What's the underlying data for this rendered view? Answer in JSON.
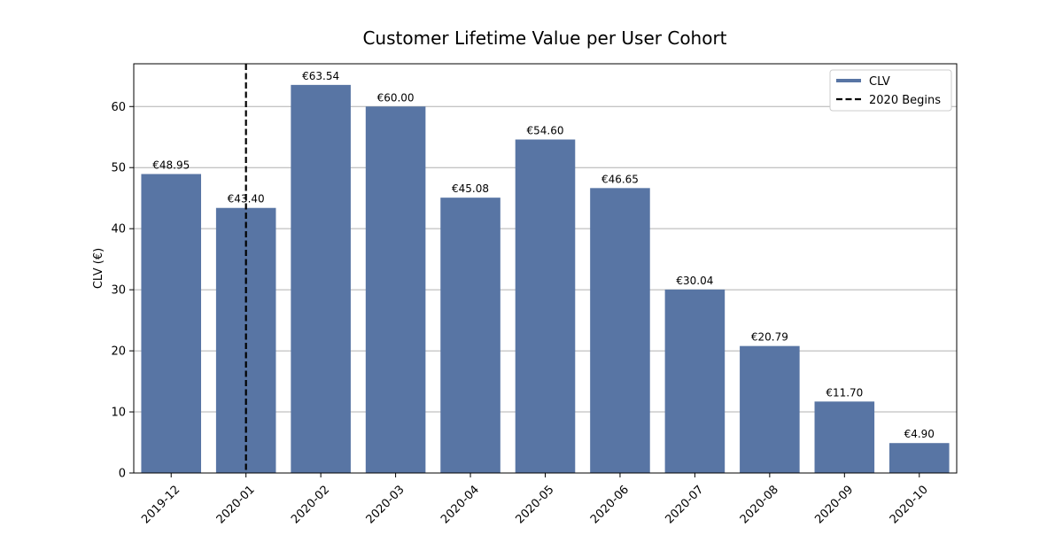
{
  "chart_data": {
    "type": "bar",
    "title": "Customer Lifetime Value per User Cohort",
    "xlabel": "",
    "ylabel": "CLV (€)",
    "categories": [
      "2019-12",
      "2020-01",
      "2020-02",
      "2020-03",
      "2020-04",
      "2020-05",
      "2020-06",
      "2020-07",
      "2020-08",
      "2020-09",
      "2020-10"
    ],
    "series": [
      {
        "name": "CLV",
        "values": [
          48.95,
          43.4,
          63.54,
          60.0,
          45.08,
          54.6,
          46.65,
          30.04,
          20.79,
          11.7,
          4.9
        ],
        "data_labels": [
          "€48.95",
          "€43.40",
          "€63.54",
          "€60.00",
          "€45.08",
          "€54.60",
          "€46.65",
          "€30.04",
          "€20.79",
          "€11.70",
          "€4.90"
        ],
        "color": "#5875a4"
      }
    ],
    "vline": {
      "name": "2020 Begins",
      "category": "2020-01",
      "style": "dashed",
      "color": "#000000"
    },
    "ylim": [
      0,
      67
    ],
    "yticks": [
      0,
      10,
      20,
      30,
      40,
      50,
      60
    ],
    "grid": "y",
    "legend": "top-right",
    "tick_rotation": 45
  }
}
